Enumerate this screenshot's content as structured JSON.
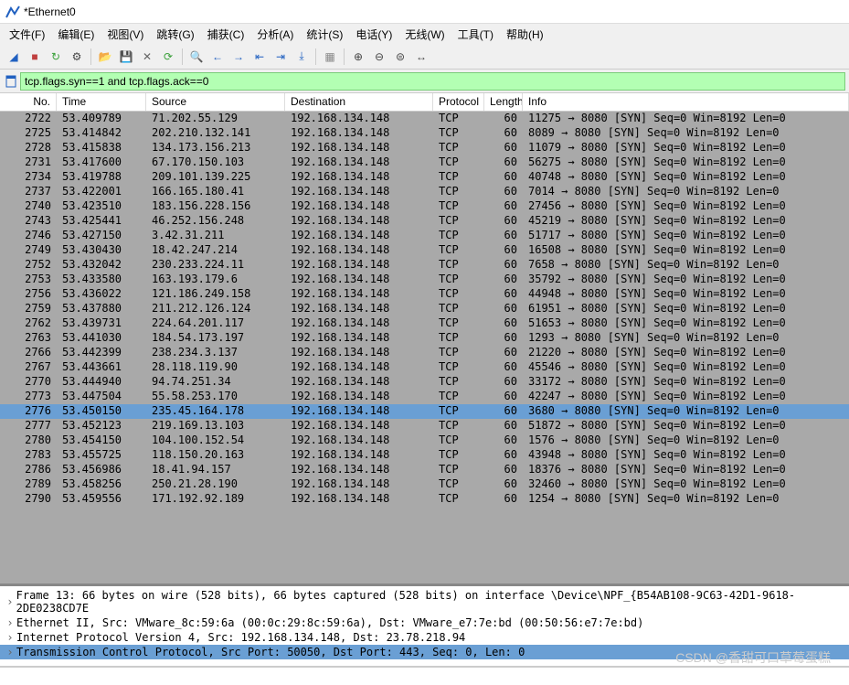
{
  "window": {
    "title": "*Ethernet0",
    "icon_color": "#2060c0"
  },
  "menu": {
    "items": [
      {
        "label": "文件(F)"
      },
      {
        "label": "编辑(E)"
      },
      {
        "label": "视图(V)"
      },
      {
        "label": "跳转(G)"
      },
      {
        "label": "捕获(C)"
      },
      {
        "label": "分析(A)"
      },
      {
        "label": "统计(S)"
      },
      {
        "label": "电话(Y)"
      },
      {
        "label": "无线(W)"
      },
      {
        "label": "工具(T)"
      },
      {
        "label": "帮助(H)"
      }
    ]
  },
  "toolbar": {
    "buttons": [
      {
        "name": "start-capture-icon",
        "color": "#2060c0",
        "glyph": "◢"
      },
      {
        "name": "stop-capture-icon",
        "color": "#c04040",
        "glyph": "■"
      },
      {
        "name": "restart-capture-icon",
        "color": "#3aa03a",
        "glyph": "↻"
      },
      {
        "name": "capture-options-icon",
        "color": "#444",
        "glyph": "⚙"
      },
      {
        "sep": true
      },
      {
        "name": "open-file-icon",
        "color": "#d4a030",
        "glyph": "📂"
      },
      {
        "name": "save-file-icon",
        "color": "#2060c0",
        "glyph": "💾"
      },
      {
        "name": "close-file-icon",
        "color": "#666",
        "glyph": "✕"
      },
      {
        "name": "reload-icon",
        "color": "#3aa03a",
        "glyph": "⟳"
      },
      {
        "sep": true
      },
      {
        "name": "find-icon",
        "color": "#444",
        "glyph": "🔍"
      },
      {
        "name": "go-prev-icon",
        "color": "#2060c0",
        "glyph": "←"
      },
      {
        "name": "go-next-icon",
        "color": "#2060c0",
        "glyph": "→"
      },
      {
        "name": "go-first-icon",
        "color": "#2060c0",
        "glyph": "⇤"
      },
      {
        "name": "go-last-icon",
        "color": "#2060c0",
        "glyph": "⇥"
      },
      {
        "name": "auto-scroll-icon",
        "color": "#2060c0",
        "glyph": "⤓"
      },
      {
        "sep": true
      },
      {
        "name": "colorize-icon",
        "color": "#888",
        "glyph": "▦"
      },
      {
        "sep": true
      },
      {
        "name": "zoom-in-icon",
        "color": "#444",
        "glyph": "⊕"
      },
      {
        "name": "zoom-out-icon",
        "color": "#444",
        "glyph": "⊖"
      },
      {
        "name": "zoom-reset-icon",
        "color": "#444",
        "glyph": "⊜"
      },
      {
        "name": "resize-cols-icon",
        "color": "#444",
        "glyph": "↔"
      }
    ]
  },
  "filter": {
    "value": "tcp.flags.syn==1 and tcp.flags.ack==0",
    "bg_valid": "#b3ffb3"
  },
  "columns": [
    {
      "key": "no",
      "label": "No."
    },
    {
      "key": "time",
      "label": "Time"
    },
    {
      "key": "src",
      "label": "Source"
    },
    {
      "key": "dst",
      "label": "Destination"
    },
    {
      "key": "proto",
      "label": "Protocol"
    },
    {
      "key": "len",
      "label": "Length"
    },
    {
      "key": "info",
      "label": "Info"
    }
  ],
  "selected_row_no": 2776,
  "packets": [
    {
      "no": 2722,
      "time": "53.409789",
      "src": "71.202.55.129",
      "dst": "192.168.134.148",
      "proto": "TCP",
      "len": 60,
      "info": "11275 → 8080 [SYN] Seq=0 Win=8192 Len=0"
    },
    {
      "no": 2725,
      "time": "53.414842",
      "src": "202.210.132.141",
      "dst": "192.168.134.148",
      "proto": "TCP",
      "len": 60,
      "info": "8089 → 8080 [SYN] Seq=0 Win=8192 Len=0"
    },
    {
      "no": 2728,
      "time": "53.415838",
      "src": "134.173.156.213",
      "dst": "192.168.134.148",
      "proto": "TCP",
      "len": 60,
      "info": "11079 → 8080 [SYN] Seq=0 Win=8192 Len=0"
    },
    {
      "no": 2731,
      "time": "53.417600",
      "src": "67.170.150.103",
      "dst": "192.168.134.148",
      "proto": "TCP",
      "len": 60,
      "info": "56275 → 8080 [SYN] Seq=0 Win=8192 Len=0"
    },
    {
      "no": 2734,
      "time": "53.419788",
      "src": "209.101.139.225",
      "dst": "192.168.134.148",
      "proto": "TCP",
      "len": 60,
      "info": "40748 → 8080 [SYN] Seq=0 Win=8192 Len=0"
    },
    {
      "no": 2737,
      "time": "53.422001",
      "src": "166.165.180.41",
      "dst": "192.168.134.148",
      "proto": "TCP",
      "len": 60,
      "info": "7014 → 8080 [SYN] Seq=0 Win=8192 Len=0"
    },
    {
      "no": 2740,
      "time": "53.423510",
      "src": "183.156.228.156",
      "dst": "192.168.134.148",
      "proto": "TCP",
      "len": 60,
      "info": "27456 → 8080 [SYN] Seq=0 Win=8192 Len=0"
    },
    {
      "no": 2743,
      "time": "53.425441",
      "src": "46.252.156.248",
      "dst": "192.168.134.148",
      "proto": "TCP",
      "len": 60,
      "info": "45219 → 8080 [SYN] Seq=0 Win=8192 Len=0"
    },
    {
      "no": 2746,
      "time": "53.427150",
      "src": "3.42.31.211",
      "dst": "192.168.134.148",
      "proto": "TCP",
      "len": 60,
      "info": "51717 → 8080 [SYN] Seq=0 Win=8192 Len=0"
    },
    {
      "no": 2749,
      "time": "53.430430",
      "src": "18.42.247.214",
      "dst": "192.168.134.148",
      "proto": "TCP",
      "len": 60,
      "info": "16508 → 8080 [SYN] Seq=0 Win=8192 Len=0"
    },
    {
      "no": 2752,
      "time": "53.432042",
      "src": "230.233.224.11",
      "dst": "192.168.134.148",
      "proto": "TCP",
      "len": 60,
      "info": "7658 → 8080 [SYN] Seq=0 Win=8192 Len=0"
    },
    {
      "no": 2753,
      "time": "53.433580",
      "src": "163.193.179.6",
      "dst": "192.168.134.148",
      "proto": "TCP",
      "len": 60,
      "info": "35792 → 8080 [SYN] Seq=0 Win=8192 Len=0"
    },
    {
      "no": 2756,
      "time": "53.436022",
      "src": "121.186.249.158",
      "dst": "192.168.134.148",
      "proto": "TCP",
      "len": 60,
      "info": "44948 → 8080 [SYN] Seq=0 Win=8192 Len=0"
    },
    {
      "no": 2759,
      "time": "53.437880",
      "src": "211.212.126.124",
      "dst": "192.168.134.148",
      "proto": "TCP",
      "len": 60,
      "info": "61951 → 8080 [SYN] Seq=0 Win=8192 Len=0"
    },
    {
      "no": 2762,
      "time": "53.439731",
      "src": "224.64.201.117",
      "dst": "192.168.134.148",
      "proto": "TCP",
      "len": 60,
      "info": "51653 → 8080 [SYN] Seq=0 Win=8192 Len=0"
    },
    {
      "no": 2763,
      "time": "53.441030",
      "src": "184.54.173.197",
      "dst": "192.168.134.148",
      "proto": "TCP",
      "len": 60,
      "info": "1293 → 8080 [SYN] Seq=0 Win=8192 Len=0"
    },
    {
      "no": 2766,
      "time": "53.442399",
      "src": "238.234.3.137",
      "dst": "192.168.134.148",
      "proto": "TCP",
      "len": 60,
      "info": "21220 → 8080 [SYN] Seq=0 Win=8192 Len=0"
    },
    {
      "no": 2767,
      "time": "53.443661",
      "src": "28.118.119.90",
      "dst": "192.168.134.148",
      "proto": "TCP",
      "len": 60,
      "info": "45546 → 8080 [SYN] Seq=0 Win=8192 Len=0"
    },
    {
      "no": 2770,
      "time": "53.444940",
      "src": "94.74.251.34",
      "dst": "192.168.134.148",
      "proto": "TCP",
      "len": 60,
      "info": "33172 → 8080 [SYN] Seq=0 Win=8192 Len=0"
    },
    {
      "no": 2773,
      "time": "53.447504",
      "src": "55.58.253.170",
      "dst": "192.168.134.148",
      "proto": "TCP",
      "len": 60,
      "info": "42247 → 8080 [SYN] Seq=0 Win=8192 Len=0"
    },
    {
      "no": 2776,
      "time": "53.450150",
      "src": "235.45.164.178",
      "dst": "192.168.134.148",
      "proto": "TCP",
      "len": 60,
      "info": "3680 → 8080 [SYN] Seq=0 Win=8192 Len=0"
    },
    {
      "no": 2777,
      "time": "53.452123",
      "src": "219.169.13.103",
      "dst": "192.168.134.148",
      "proto": "TCP",
      "len": 60,
      "info": "51872 → 8080 [SYN] Seq=0 Win=8192 Len=0"
    },
    {
      "no": 2780,
      "time": "53.454150",
      "src": "104.100.152.54",
      "dst": "192.168.134.148",
      "proto": "TCP",
      "len": 60,
      "info": "1576 → 8080 [SYN] Seq=0 Win=8192 Len=0"
    },
    {
      "no": 2783,
      "time": "53.455725",
      "src": "118.150.20.163",
      "dst": "192.168.134.148",
      "proto": "TCP",
      "len": 60,
      "info": "43948 → 8080 [SYN] Seq=0 Win=8192 Len=0"
    },
    {
      "no": 2786,
      "time": "53.456986",
      "src": "18.41.94.157",
      "dst": "192.168.134.148",
      "proto": "TCP",
      "len": 60,
      "info": "18376 → 8080 [SYN] Seq=0 Win=8192 Len=0"
    },
    {
      "no": 2789,
      "time": "53.458256",
      "src": "250.21.28.190",
      "dst": "192.168.134.148",
      "proto": "TCP",
      "len": 60,
      "info": "32460 → 8080 [SYN] Seq=0 Win=8192 Len=0"
    },
    {
      "no": 2790,
      "time": "53.459556",
      "src": "171.192.92.189",
      "dst": "192.168.134.148",
      "proto": "TCP",
      "len": 60,
      "info": "1254 → 8080 [SYN] Seq=0 Win=8192 Len=0"
    }
  ],
  "details": {
    "selected_index": 3,
    "lines": [
      "Frame 13: 66 bytes on wire (528 bits), 66 bytes captured (528 bits) on interface \\Device\\NPF_{B54AB108-9C63-42D1-9618-2DE0238CD7E",
      "Ethernet II, Src: VMware_8c:59:6a (00:0c:29:8c:59:6a), Dst: VMware_e7:7e:bd (00:50:56:e7:7e:bd)",
      "Internet Protocol Version 4, Src: 192.168.134.148, Dst: 23.78.218.94",
      "Transmission Control Protocol, Src Port: 50050, Dst Port: 443, Seq: 0, Len: 0"
    ]
  },
  "watermark": "CSDN @香甜可口草莓蛋糕",
  "colors": {
    "row_bg": "#a9a9a9",
    "row_selected": "#6a9fd4",
    "detail_selected": "#6a9fd4"
  }
}
